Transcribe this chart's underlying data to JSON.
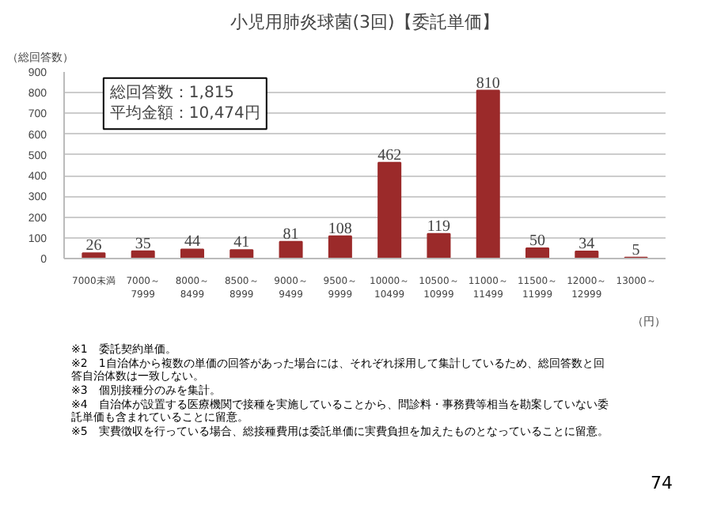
{
  "chart_data": {
    "type": "bar",
    "title": "小児用肺炎球菌(3回)【委託単価】",
    "ylabel": "（総回答数）",
    "xlabel": "（円）",
    "categories": [
      "7000未満",
      "7000～7999",
      "8000～8499",
      "8500～8999",
      "9000～9499",
      "9500～9999",
      "10000～10499",
      "10500～10999",
      "11000～11499",
      "11500～11999",
      "12000～12999",
      "13000～"
    ],
    "values": [
      26,
      35,
      44,
      41,
      81,
      108,
      462,
      119,
      810,
      50,
      34,
      5
    ],
    "color": "#9b2a2a",
    "ylim": [
      0,
      900
    ],
    "yticks": [
      0,
      100,
      200,
      300,
      400,
      500,
      600,
      700,
      800,
      900
    ],
    "grid": "y",
    "data_labels": true,
    "annotations": [
      "総回答数：1,815",
      "平均金額：10,474円",
      "※1　委託契約単価。",
      "※2　1自治体から複数の単価の回答があった場合には、それぞれ採用して集計しているため、総回答数と回答自治体数は一致しない。",
      "※3　個別接種分のみを集計。",
      "※4　自治体が設置する医療機関で接種を実施していることから、問診料・事務費等相当を勘案していない委託単価も含まれていることに留意。",
      "※5　実費徴収を行っている場合、総接種費用は委託単価に実費負担を加えたものとなっていることに留意。",
      "74"
    ]
  }
}
